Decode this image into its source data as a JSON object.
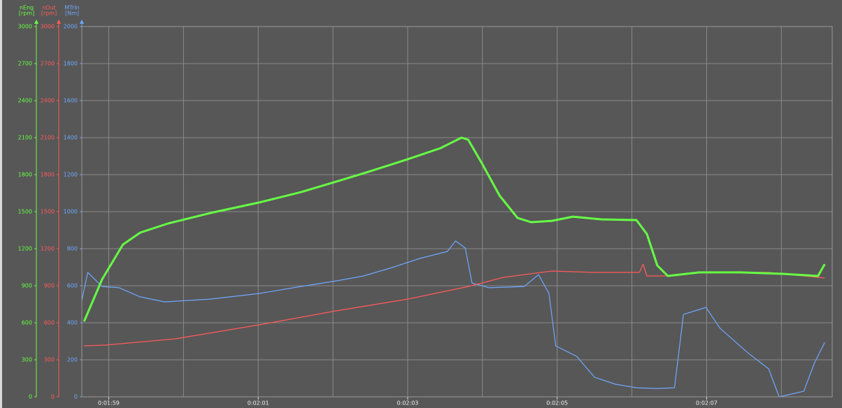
{
  "chart_data": {
    "type": "line",
    "grid": true,
    "xlim": [
      118.64,
      128.68
    ],
    "xticks": [
      {
        "value": 119,
        "label": "0:01:59"
      },
      {
        "value": 121,
        "label": "0:02:01"
      },
      {
        "value": 123,
        "label": "0:02:03"
      },
      {
        "value": 125,
        "label": "0:02:05"
      },
      {
        "value": 127,
        "label": "0:02:07"
      }
    ],
    "xgrid": [
      119,
      120,
      121,
      122,
      123,
      124,
      125,
      126,
      127,
      128
    ],
    "series": [
      {
        "name": "nEng",
        "unit": "[rpm]",
        "color": "#66ff44",
        "ylim": [
          0,
          3000
        ],
        "yticks": [
          0,
          300,
          600,
          900,
          1200,
          1500,
          1800,
          2100,
          2400,
          2700,
          3000
        ],
        "x": [
          118.67,
          118.81,
          118.91,
          119.05,
          119.19,
          119.42,
          119.79,
          120.36,
          121.01,
          121.57,
          122.04,
          122.5,
          123.0,
          123.44,
          123.72,
          123.81,
          124.0,
          124.23,
          124.47,
          124.65,
          124.93,
          125.21,
          125.59,
          126.06,
          126.2,
          126.34,
          126.48,
          126.9,
          127.46,
          128.02,
          128.49,
          128.58
        ],
        "values": [
          611,
          809,
          951,
          1092,
          1234,
          1330,
          1404,
          1489,
          1574,
          1658,
          1743,
          1828,
          1925,
          2015,
          2100,
          2083,
          1885,
          1630,
          1449,
          1415,
          1426,
          1460,
          1438,
          1432,
          1319,
          1064,
          979,
          1008,
          1008,
          996,
          979,
          1075
        ]
      },
      {
        "name": "nOut",
        "unit": "[rpm]",
        "color": "#ff5a5a",
        "ylim": [
          0,
          3000
        ],
        "yticks": [
          0,
          300,
          600,
          900,
          1200,
          1500,
          1800,
          2100,
          2400,
          2700,
          3000
        ],
        "x": [
          118.67,
          118.95,
          119.89,
          121.01,
          122.04,
          123.0,
          123.81,
          124.28,
          124.93,
          125.5,
          126.1,
          126.15,
          126.2,
          126.43,
          126.9,
          127.83,
          128.58
        ],
        "values": [
          413,
          419,
          470,
          583,
          696,
          792,
          894,
          968,
          1019,
          1008,
          1008,
          1075,
          979,
          979,
          1008,
          1008,
          962
        ]
      },
      {
        "name": "MTrIn",
        "unit": "[Nm]",
        "color": "#6ea8ff",
        "ylim": [
          0,
          2000
        ],
        "yticks": [
          0,
          200,
          400,
          600,
          800,
          1000,
          1200,
          1400,
          1600,
          1800,
          2000
        ],
        "x": [
          118.64,
          118.72,
          118.91,
          119.14,
          119.42,
          119.75,
          120.36,
          121.01,
          121.57,
          122.04,
          122.41,
          122.79,
          123.16,
          123.53,
          123.64,
          123.77,
          123.86,
          124.09,
          124.56,
          124.75,
          124.89,
          124.98,
          125.26,
          125.5,
          125.78,
          126.06,
          126.34,
          126.57,
          126.69,
          126.99,
          127.18,
          127.55,
          127.83,
          127.97,
          128.3,
          128.44,
          128.58
        ],
        "values": [
          521,
          672,
          596,
          589,
          540,
          513,
          528,
          558,
          596,
          626,
          653,
          698,
          747,
          785,
          842,
          804,
          615,
          589,
          596,
          660,
          558,
          275,
          219,
          106,
          68,
          49,
          45,
          49,
          445,
          483,
          370,
          238,
          151,
          0,
          30,
          181,
          294
        ]
      }
    ]
  }
}
